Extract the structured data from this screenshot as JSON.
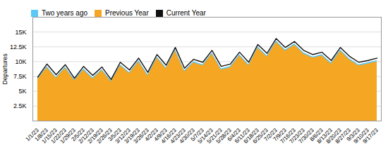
{
  "chart_data": {
    "type": "area",
    "ylabel": "Departures",
    "categories": [
      "1/1/23",
      "1/8/23",
      "1/15/23",
      "1/22/23",
      "1/29/23",
      "2/5/23",
      "2/12/23",
      "2/19/23",
      "2/26/23",
      "3/5/23",
      "3/12/23",
      "3/19/23",
      "3/26/23",
      "4/2/23",
      "4/9/23",
      "4/16/23",
      "4/23/23",
      "4/30/23",
      "5/7/23",
      "5/14/23",
      "5/21/23",
      "5/28/23",
      "6/4/23",
      "6/11/23",
      "6/18/23",
      "6/25/23",
      "7/2/23",
      "7/9/23",
      "7/16/23",
      "7/23/23",
      "7/30/23",
      "8/6/23",
      "8/13/23",
      "8/20/23",
      "8/27/23",
      "9/3/23",
      "9/10/23",
      "9/17/23"
    ],
    "series": [
      {
        "name": "Two years ago",
        "type": "area",
        "color": "#5bc8f5",
        "values": [
          7200,
          9200,
          7400,
          9100,
          7000,
          8800,
          7300,
          8700,
          6800,
          9500,
          8200,
          10200,
          7800,
          10800,
          9000,
          12000,
          8500,
          10000,
          9500,
          11500,
          8800,
          9200,
          11200,
          9500,
          12500,
          11000,
          13500,
          12000,
          13000,
          11500,
          10800,
          11200,
          9800,
          12000,
          10500,
          9500,
          9800,
          10200
        ]
      },
      {
        "name": "Previous Year",
        "type": "area",
        "color": "#f5a623",
        "values": [
          7000,
          9000,
          7200,
          8900,
          6800,
          8600,
          7100,
          8500,
          6600,
          9300,
          8000,
          10000,
          7600,
          10600,
          8800,
          11800,
          8300,
          9800,
          9300,
          11300,
          8600,
          9000,
          11000,
          9300,
          12300,
          10800,
          13300,
          11800,
          12800,
          11300,
          10600,
          11000,
          9600,
          11800,
          10300,
          9300,
          9600,
          10000
        ]
      },
      {
        "name": "Current Year",
        "type": "line",
        "color": "#111111",
        "values": [
          7400,
          9600,
          7800,
          9500,
          7200,
          9200,
          7700,
          9100,
          7000,
          9900,
          8600,
          10600,
          8200,
          11200,
          9400,
          12400,
          8900,
          10400,
          9900,
          11900,
          9200,
          9600,
          11600,
          9900,
          12900,
          11400,
          13900,
          12400,
          13400,
          11900,
          11200,
          11600,
          10200,
          12400,
          10900,
          9900,
          10200,
          10600
        ]
      }
    ],
    "ylim": [
      0,
      17500
    ],
    "yticks": [
      {
        "value": 2500,
        "label": "2.5K"
      },
      {
        "value": 5000,
        "label": "5K"
      },
      {
        "value": 7500,
        "label": "7.5K"
      },
      {
        "value": 10000,
        "label": "10K"
      },
      {
        "value": 12500,
        "label": "12.5K"
      },
      {
        "value": 15000,
        "label": "15K"
      }
    ],
    "grid": true,
    "legend": "top"
  }
}
